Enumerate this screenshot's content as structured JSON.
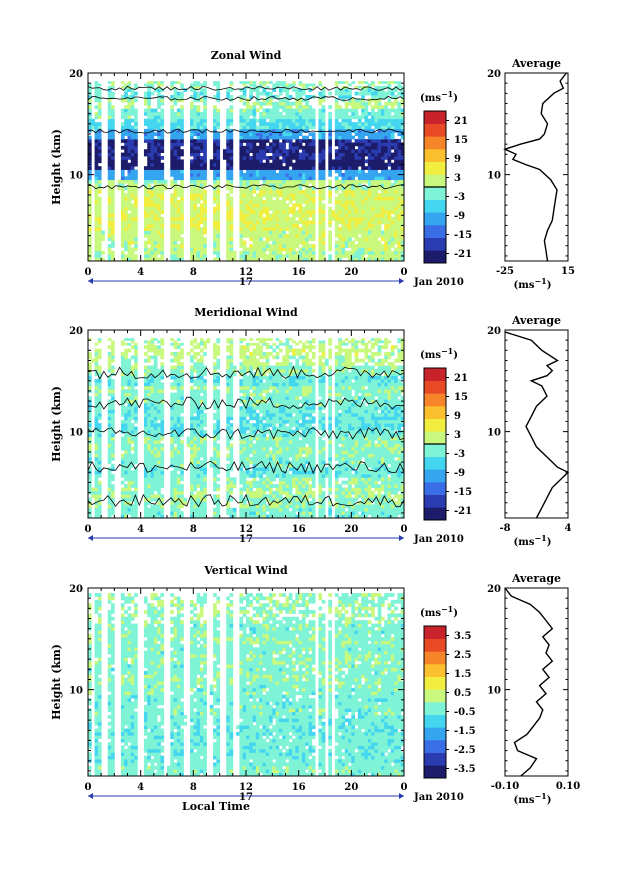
{
  "figure": {
    "panels": [
      {
        "id": "zonal",
        "title": "Zonal Wind",
        "ylabel": "Height (km)",
        "unit_label": "(ms⁻¹)",
        "colorbar_ticks": [
          "21",
          "15",
          "9",
          "3",
          "-3",
          "-9",
          "-15",
          "-21"
        ],
        "cbar_range": [
          -24,
          24
        ],
        "contour_levels": [
          0
        ],
        "profile_title": "Average",
        "profile_xticks": [
          "-25",
          "15"
        ],
        "profile_xrange": [
          -25,
          15
        ],
        "profile_unit": "(ms⁻¹)"
      },
      {
        "id": "meridional",
        "title": "Meridional Wind",
        "ylabel": "Height (km)",
        "unit_label": "(ms⁻¹)",
        "colorbar_ticks": [
          "21",
          "15",
          "9",
          "3",
          "-3",
          "-9",
          "-15",
          "-21"
        ],
        "cbar_range": [
          -24,
          24
        ],
        "contour_levels": [
          0
        ],
        "profile_title": "Average",
        "profile_xticks": [
          "-8",
          "4"
        ],
        "profile_xrange": [
          -8,
          4
        ],
        "profile_unit": "(ms⁻¹)"
      },
      {
        "id": "vertical",
        "title": "Vertical Wind",
        "ylabel": "Height (km)",
        "unit_label": "(ms⁻¹)",
        "colorbar_ticks": [
          "3.5",
          "2.5",
          "1.5",
          "0.5",
          "-0.5",
          "-1.5",
          "-2.5",
          "-3.5"
        ],
        "cbar_range": [
          -4,
          4
        ],
        "contour_levels": [],
        "profile_title": "Average",
        "profile_xticks": [
          "-0.10",
          "0.10"
        ],
        "profile_xrange": [
          -0.1,
          0.1
        ],
        "profile_unit": "(ms⁻¹)"
      }
    ],
    "time_ticks": [
      "0",
      "4",
      "8",
      "12",
      "16",
      "20",
      "0"
    ],
    "day_label": "17",
    "date_label": "Jan 2010",
    "xlabel": "Local Time",
    "height_ticks": [
      "10",
      "20"
    ],
    "colormap": [
      "#1c1c6b",
      "#2a3cb0",
      "#3a6ee6",
      "#35a5f0",
      "#45d6ef",
      "#7ff3d6",
      "#c8f87d",
      "#f2ee3f",
      "#fcbf2d",
      "#f6852a",
      "#e84a25",
      "#c8232a"
    ]
  },
  "chart_data": [
    {
      "type": "heatmap",
      "title": "Zonal Wind",
      "xlabel": "",
      "ylabel": "Height (km)",
      "xlim_hours": [
        0,
        24
      ],
      "ylim_km": [
        1.5,
        20
      ],
      "color_range": [
        -24,
        24
      ],
      "height_km": [
        2,
        3,
        4,
        5,
        6,
        7,
        8,
        9,
        10,
        11,
        12,
        13,
        14,
        15,
        16,
        17,
        18,
        19,
        20
      ],
      "typical_value": [
        1,
        2,
        2,
        3,
        4,
        3,
        3,
        1,
        -10,
        -22,
        -20,
        -20,
        -10,
        -5,
        -2,
        0,
        -3,
        -1,
        4
      ],
      "profile": {
        "title": "Average",
        "x": [
          2,
          1,
          0,
          2,
          5,
          6,
          7,
          8,
          4,
          -3,
          -12,
          -20,
          -18,
          -25,
          -15,
          -3,
          0,
          2,
          -2,
          -1,
          6,
          12,
          10,
          14
        ],
        "y": [
          1.5,
          2.5,
          3.5,
          4.5,
          5.5,
          6.5,
          7.5,
          8.5,
          9.5,
          10.5,
          11,
          11.5,
          12,
          12.5,
          13,
          13.5,
          14,
          15,
          16,
          17,
          18,
          18.5,
          19.2,
          20
        ]
      }
    },
    {
      "type": "heatmap",
      "title": "Meridional Wind",
      "xlabel": "",
      "ylabel": "Height (km)",
      "xlim_hours": [
        0,
        24
      ],
      "ylim_km": [
        1.5,
        20
      ],
      "color_range": [
        -24,
        24
      ],
      "height_km": [
        2,
        3,
        4,
        5,
        6,
        7,
        8,
        9,
        10,
        11,
        12,
        13,
        14,
        15,
        16,
        17,
        18,
        19,
        20
      ],
      "typical_value": [
        -2,
        -1,
        0,
        -1,
        -3,
        -2,
        -1,
        -1,
        -3,
        -4,
        -3,
        -2,
        -1,
        -3,
        -1,
        1,
        2,
        1,
        -5
      ],
      "profile": {
        "title": "Average",
        "x": [
          -2,
          -1,
          0,
          1,
          3,
          4,
          2,
          0,
          -2,
          -3,
          -4,
          -3,
          -2,
          -1,
          0,
          -1,
          -3,
          0,
          1,
          0,
          2,
          -1,
          -3,
          -8
        ],
        "y": [
          1.5,
          2.5,
          3.5,
          4.5,
          5.5,
          6,
          6.5,
          7.5,
          8.5,
          9.5,
          10.5,
          11.5,
          12.5,
          13,
          13.5,
          14.5,
          15,
          15.5,
          16,
          16.5,
          17,
          18,
          19,
          19.8
        ]
      }
    },
    {
      "type": "heatmap",
      "title": "Vertical Wind",
      "xlabel": "Local Time",
      "ylabel": "Height (km)",
      "xlim_hours": [
        0,
        24
      ],
      "ylim_km": [
        1.5,
        20
      ],
      "color_range": [
        -4,
        4
      ],
      "height_km": [
        2,
        3,
        4,
        5,
        6,
        7,
        8,
        9,
        10,
        11,
        12,
        13,
        14,
        15,
        16,
        17,
        18,
        19,
        20
      ],
      "typical_value": [
        -0.3,
        -0.4,
        -0.5,
        -0.4,
        -0.5,
        -0.4,
        -0.3,
        -0.4,
        -0.3,
        -0.2,
        -0.3,
        -0.2,
        -0.3,
        -0.2,
        -0.3,
        -0.2,
        -0.1,
        -0.2,
        -0.3
      ],
      "profile": {
        "title": "Average",
        "x": [
          -0.05,
          -0.02,
          0.0,
          -0.06,
          -0.07,
          -0.03,
          -0.01,
          0.01,
          0.02,
          0.0,
          0.03,
          0.01,
          0.04,
          0.02,
          0.05,
          0.03,
          0.04,
          0.02,
          0.05,
          0.03,
          0.01,
          -0.02,
          -0.08,
          -0.1
        ],
        "y": [
          1.5,
          2.3,
          3.2,
          4,
          4.8,
          5.6,
          6.4,
          7.2,
          8,
          8.8,
          9.6,
          10.4,
          11.2,
          12,
          12.8,
          13.6,
          14.4,
          15.2,
          16,
          16.8,
          17.6,
          18.4,
          19.2,
          20
        ]
      }
    }
  ]
}
